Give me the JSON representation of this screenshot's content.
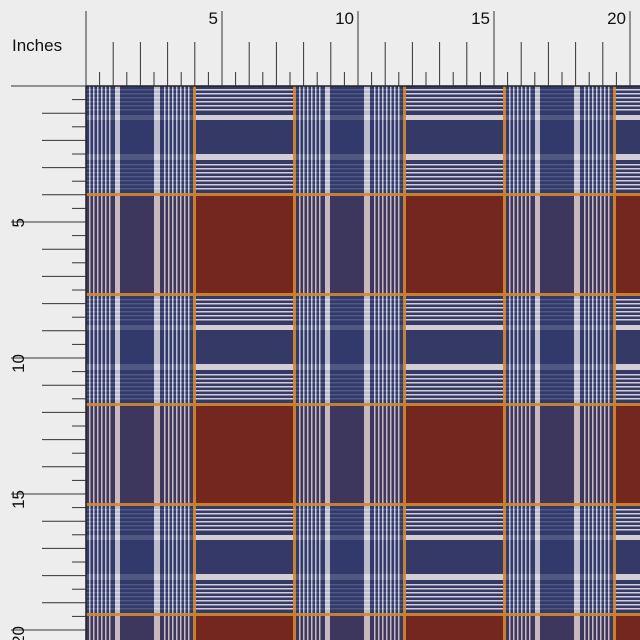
{
  "ruler": {
    "unit_label": "Inches",
    "top_labels": [
      "5",
      "10",
      "15",
      "20"
    ],
    "left_labels": [
      "5",
      "10",
      "15",
      "20"
    ]
  }
}
